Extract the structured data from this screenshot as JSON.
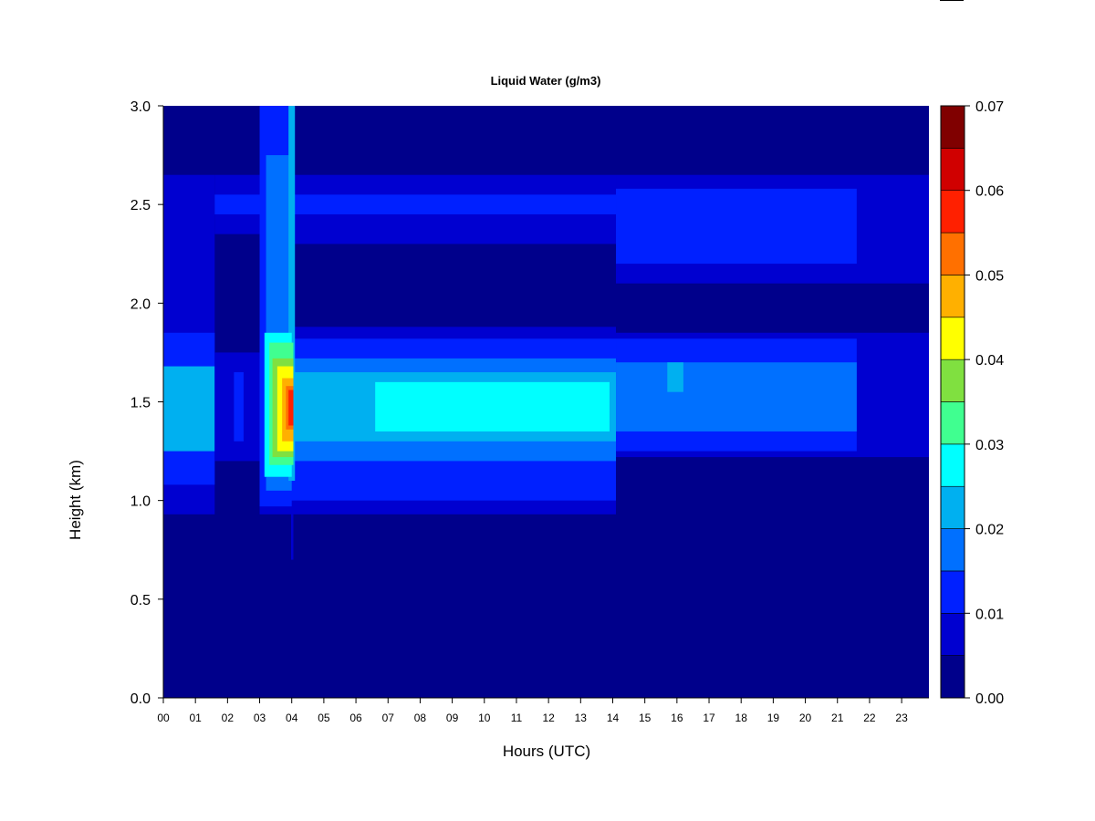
{
  "chart_data": {
    "type": "heatmap",
    "title": "Liquid Water (g/m3)",
    "xlabel": "Hours (UTC)",
    "ylabel": "Height (km)",
    "xlim": [
      0,
      23.85
    ],
    "ylim": [
      0,
      3
    ],
    "x_ticks": [
      {
        "value": 0,
        "label": "00"
      },
      {
        "value": 1,
        "label": "01"
      },
      {
        "value": 2,
        "label": "02"
      },
      {
        "value": 3,
        "label": "03"
      },
      {
        "value": 4,
        "label": "04"
      },
      {
        "value": 5,
        "label": "05"
      },
      {
        "value": 6,
        "label": "06"
      },
      {
        "value": 7,
        "label": "07"
      },
      {
        "value": 8,
        "label": "08"
      },
      {
        "value": 9,
        "label": "09"
      },
      {
        "value": 10,
        "label": "10"
      },
      {
        "value": 11,
        "label": "11"
      },
      {
        "value": 12,
        "label": "12"
      },
      {
        "value": 13,
        "label": "13"
      },
      {
        "value": 14,
        "label": "14"
      },
      {
        "value": 15,
        "label": "15"
      },
      {
        "value": 16,
        "label": "16"
      },
      {
        "value": 17,
        "label": "17"
      },
      {
        "value": 18,
        "label": "18"
      },
      {
        "value": 19,
        "label": "19"
      },
      {
        "value": 20,
        "label": "20"
      },
      {
        "value": 21,
        "label": "21"
      },
      {
        "value": 22,
        "label": "22"
      },
      {
        "value": 23,
        "label": "23"
      }
    ],
    "y_ticks": [
      {
        "value": 0.0,
        "label": "0.0"
      },
      {
        "value": 0.5,
        "label": "0.5"
      },
      {
        "value": 1.0,
        "label": "1.0"
      },
      {
        "value": 1.5,
        "label": "1.5"
      },
      {
        "value": 2.0,
        "label": "2.0"
      },
      {
        "value": 2.5,
        "label": "2.5"
      },
      {
        "value": 3.0,
        "label": "3.0"
      }
    ],
    "colorbar": {
      "min": 0.0,
      "max": 0.07,
      "levels": [
        0.0,
        0.005,
        0.01,
        0.015,
        0.02,
        0.025,
        0.03,
        0.035,
        0.04,
        0.045,
        0.05,
        0.055,
        0.06,
        0.065,
        0.07
      ],
      "colors": [
        "#00008b",
        "#0000d0",
        "#0020ff",
        "#0070ff",
        "#00b0f0",
        "#00ffff",
        "#40ff90",
        "#80e040",
        "#ffff00",
        "#ffb000",
        "#ff7000",
        "#ff2000",
        "#d00000",
        "#800000"
      ],
      "ticks": [
        {
          "value": 0.0,
          "label": "0.00"
        },
        {
          "value": 0.01,
          "label": "0.01"
        },
        {
          "value": 0.02,
          "label": "0.02"
        },
        {
          "value": 0.03,
          "label": "0.03"
        },
        {
          "value": 0.04,
          "label": "0.04"
        },
        {
          "value": 0.05,
          "label": "0.05"
        },
        {
          "value": 0.06,
          "label": "0.06"
        },
        {
          "value": 0.07,
          "label": "0.07"
        }
      ]
    },
    "background_value": 0.002,
    "regions": [
      {
        "x": [
          0.0,
          1.6
        ],
        "y": [
          0.93,
          2.65
        ],
        "v": 0.008
      },
      {
        "x": [
          0.0,
          1.6
        ],
        "y": [
          1.08,
          1.85
        ],
        "v": 0.013
      },
      {
        "x": [
          0.0,
          1.6
        ],
        "y": [
          1.25,
          1.68
        ],
        "v": 0.022
      },
      {
        "x": [
          1.6,
          3.0
        ],
        "y": [
          2.35,
          2.65
        ],
        "v": 0.008
      },
      {
        "x": [
          1.6,
          3.0
        ],
        "y": [
          2.45,
          2.55
        ],
        "v": 0.013
      },
      {
        "x": [
          1.6,
          3.0
        ],
        "y": [
          1.2,
          1.75
        ],
        "v": 0.008
      },
      {
        "x": [
          2.2,
          2.5
        ],
        "y": [
          1.3,
          1.65
        ],
        "v": 0.013
      },
      {
        "x": [
          3.0,
          14.1
        ],
        "y": [
          0.93,
          1.88
        ],
        "v": 0.008
      },
      {
        "x": [
          3.0,
          14.1
        ],
        "y": [
          1.0,
          1.82
        ],
        "v": 0.013
      },
      {
        "x": [
          3.0,
          14.1
        ],
        "y": [
          1.2,
          1.72
        ],
        "v": 0.018
      },
      {
        "x": [
          3.0,
          14.1
        ],
        "y": [
          1.3,
          1.65
        ],
        "v": 0.023
      },
      {
        "x": [
          3.0,
          14.1
        ],
        "y": [
          2.3,
          2.65
        ],
        "v": 0.008
      },
      {
        "x": [
          3.0,
          14.1
        ],
        "y": [
          2.45,
          2.55
        ],
        "v": 0.013
      },
      {
        "x": [
          6.6,
          13.9
        ],
        "y": [
          1.35,
          1.6
        ],
        "v": 0.027
      },
      {
        "x": [
          3.0,
          4.0
        ],
        "y": [
          0.97,
          3.0
        ],
        "v": 0.013
      },
      {
        "x": [
          3.2,
          4.0
        ],
        "y": [
          1.05,
          2.75
        ],
        "v": 0.018
      },
      {
        "x": [
          3.9,
          4.1
        ],
        "y": [
          1.1,
          3.0
        ],
        "v": 0.023
      },
      {
        "x": [
          3.15,
          4.0
        ],
        "y": [
          1.12,
          1.85
        ],
        "v": 0.027
      },
      {
        "x": [
          3.3,
          4.05
        ],
        "y": [
          1.18,
          1.8
        ],
        "v": 0.032
      },
      {
        "x": [
          3.4,
          4.05
        ],
        "y": [
          1.22,
          1.72
        ],
        "v": 0.037
      },
      {
        "x": [
          3.55,
          4.05
        ],
        "y": [
          1.25,
          1.68
        ],
        "v": 0.043
      },
      {
        "x": [
          3.7,
          4.05
        ],
        "y": [
          1.3,
          1.62
        ],
        "v": 0.048
      },
      {
        "x": [
          3.82,
          4.05
        ],
        "y": [
          1.36,
          1.58
        ],
        "v": 0.053
      },
      {
        "x": [
          3.9,
          4.05
        ],
        "y": [
          1.38,
          1.56
        ],
        "v": 0.058
      },
      {
        "x": [
          3.98,
          4.05
        ],
        "y": [
          0.7,
          0.95
        ],
        "v": 0.008
      },
      {
        "x": [
          14.1,
          23.85
        ],
        "y": [
          1.22,
          1.85
        ],
        "v": 0.008
      },
      {
        "x": [
          14.1,
          21.6
        ],
        "y": [
          1.25,
          1.82
        ],
        "v": 0.013
      },
      {
        "x": [
          14.1,
          21.6
        ],
        "y": [
          1.35,
          1.7
        ],
        "v": 0.016
      },
      {
        "x": [
          15.7,
          16.2
        ],
        "y": [
          1.55,
          1.7
        ],
        "v": 0.022
      },
      {
        "x": [
          14.1,
          23.85
        ],
        "y": [
          2.1,
          2.65
        ],
        "v": 0.008
      },
      {
        "x": [
          14.1,
          21.6
        ],
        "y": [
          2.2,
          2.58
        ],
        "v": 0.011
      }
    ]
  }
}
